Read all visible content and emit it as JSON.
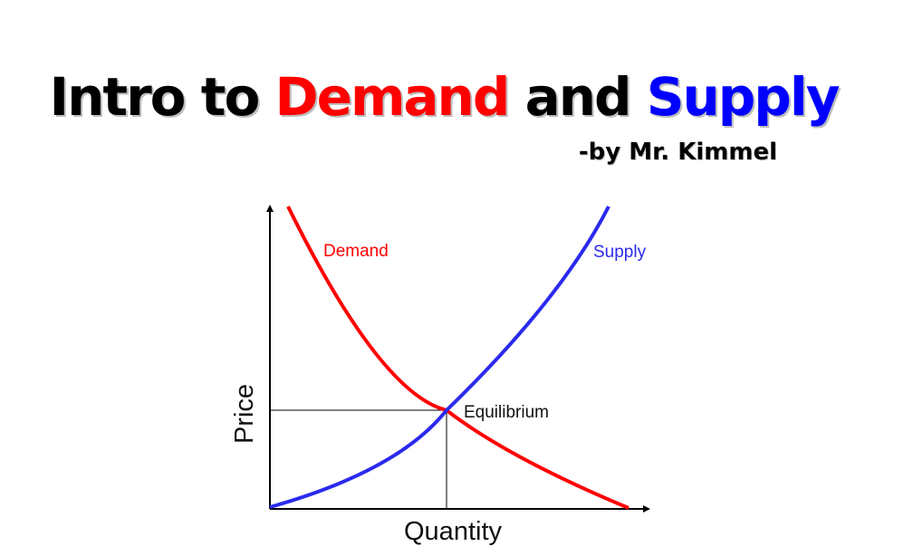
{
  "title": {
    "part1": "Intro to ",
    "demand": "Demand",
    "part2": " and ",
    "supply": "Supply"
  },
  "byline": "-by Mr. Kimmel",
  "chart_data": {
    "type": "line",
    "xlabel": "Quantity",
    "ylabel": "Price",
    "series": [
      {
        "name": "Demand",
        "color": "#ff0000",
        "shape": "downward-sloping convex curve"
      },
      {
        "name": "Supply",
        "color": "#2a2aee",
        "shape": "upward-sloping convex curve"
      }
    ],
    "annotations": [
      {
        "text": "Equilibrium",
        "at": "intersection of demand and supply"
      }
    ],
    "grid": false,
    "legend": "none"
  }
}
